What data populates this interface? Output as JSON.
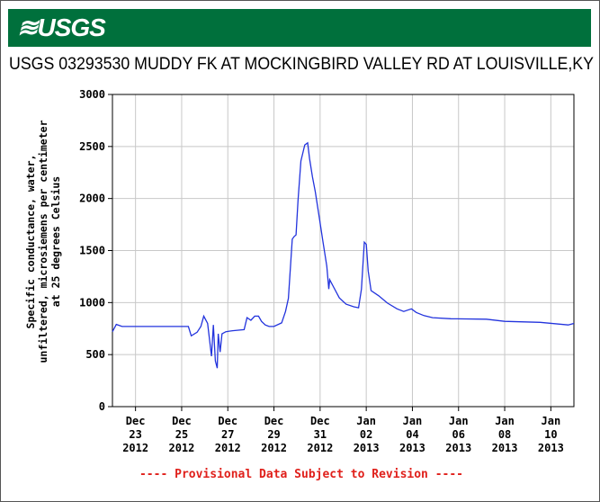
{
  "header": {
    "logo": "USGS"
  },
  "chart_data": {
    "type": "line",
    "title": "USGS 03293530 MUDDY FK AT MOCKINGBIRD VALLEY RD AT LOUISVILLE,KY",
    "y_label": [
      "Specific conductance, water,",
      "unfiltered, microsiemens per centimeter",
      "at 25 degrees Celsius"
    ],
    "footnote": "---- Provisional Data Subject to Revision ----",
    "color": "#2233dd",
    "grid": true,
    "ylim": [
      0,
      3000
    ],
    "yticks": [
      0,
      500,
      1000,
      1500,
      2000,
      2500,
      3000
    ],
    "xlim": [
      "2012-12-22T00:00",
      "2013-01-11T00:00"
    ],
    "xticks": [
      {
        "value": "2012-12-23T00:00",
        "label": [
          "Dec",
          "23",
          "2012"
        ]
      },
      {
        "value": "2012-12-25T00:00",
        "label": [
          "Dec",
          "25",
          "2012"
        ]
      },
      {
        "value": "2012-12-27T00:00",
        "label": [
          "Dec",
          "27",
          "2012"
        ]
      },
      {
        "value": "2012-12-29T00:00",
        "label": [
          "Dec",
          "29",
          "2012"
        ]
      },
      {
        "value": "2012-12-31T00:00",
        "label": [
          "Dec",
          "31",
          "2012"
        ]
      },
      {
        "value": "2013-01-02T00:00",
        "label": [
          "Jan",
          "02",
          "2013"
        ]
      },
      {
        "value": "2013-01-04T00:00",
        "label": [
          "Jan",
          "04",
          "2013"
        ]
      },
      {
        "value": "2013-01-06T00:00",
        "label": [
          "Jan",
          "06",
          "2013"
        ]
      },
      {
        "value": "2013-01-08T00:00",
        "label": [
          "Jan",
          "08",
          "2013"
        ]
      },
      {
        "value": "2013-01-10T00:00",
        "label": [
          "Jan",
          "10",
          "2013"
        ]
      }
    ],
    "x": [
      "2012-12-22T00:00",
      "2012-12-22T04:00",
      "2012-12-22T10:00",
      "2012-12-23T00:00",
      "2012-12-24T04:00",
      "2012-12-25T07:00",
      "2012-12-25T10:00",
      "2012-12-25T16:00",
      "2012-12-25T20:00",
      "2012-12-25T23:00",
      "2012-12-26T03:00",
      "2012-12-26T07:00",
      "2012-12-26T09:00",
      "2012-12-26T11:00",
      "2012-12-26T13:00",
      "2012-12-26T14:00",
      "2012-12-26T16:00",
      "2012-12-26T18:00",
      "2012-12-26T22:00",
      "2012-12-27T05:00",
      "2012-12-27T17:00",
      "2012-12-27T20:00",
      "2012-12-28T00:00",
      "2012-12-28T04:00",
      "2012-12-28T08:00",
      "2012-12-28T11:00",
      "2012-12-28T15:00",
      "2012-12-28T19:00",
      "2012-12-29T00:00",
      "2012-12-29T08:00",
      "2012-12-29T12:00",
      "2012-12-29T15:00",
      "2012-12-29T19:00",
      "2012-12-29T21:00",
      "2012-12-29T23:00",
      "2012-12-30T01:00",
      "2012-12-30T04:00",
      "2012-12-30T08:00",
      "2012-12-30T11:00",
      "2012-12-30T13:00",
      "2012-12-30T16:00",
      "2012-12-30T19:00",
      "2012-12-30T23:00",
      "2012-12-31T03:00",
      "2012-12-31T07:00",
      "2012-12-31T09:00",
      "2012-12-31T10:00",
      "2012-12-31T14:00",
      "2012-12-31T20:00",
      "2013-01-01T03:00",
      "2013-01-01T11:00",
      "2013-01-01T16:00",
      "2013-01-01T19:00",
      "2013-01-01T22:00",
      "2013-01-02T00:00",
      "2013-01-02T02:00",
      "2013-01-02T05:00",
      "2013-01-02T13:00",
      "2013-01-02T22:00",
      "2013-01-03T08:00",
      "2013-01-03T15:00",
      "2013-01-03T23:00",
      "2013-01-04T04:00",
      "2013-01-04T12:00",
      "2013-01-04T21:00",
      "2013-01-05T16:00",
      "2013-01-07T05:00",
      "2013-01-08T00:00",
      "2013-01-09T13:00",
      "2013-01-10T18:00",
      "2013-01-11T00:00"
    ],
    "values": [
      720,
      790,
      770,
      770,
      770,
      770,
      680,
      715,
      770,
      870,
      800,
      485,
      785,
      440,
      370,
      700,
      525,
      700,
      720,
      730,
      740,
      855,
      830,
      870,
      870,
      820,
      785,
      770,
      770,
      805,
      915,
      1040,
      1610,
      1635,
      1650,
      1980,
      2360,
      2515,
      2535,
      2385,
      2210,
      2065,
      1825,
      1580,
      1350,
      1130,
      1220,
      1150,
      1045,
      985,
      960,
      950,
      1130,
      1580,
      1560,
      1305,
      1115,
      1065,
      995,
      940,
      915,
      940,
      905,
      875,
      855,
      845,
      840,
      820,
      810,
      785,
      800
    ]
  }
}
